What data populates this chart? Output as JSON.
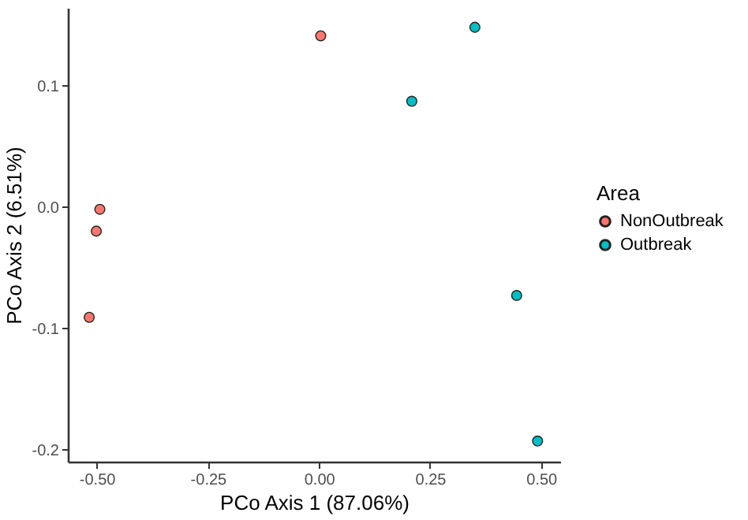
{
  "chart_data": {
    "type": "scatter",
    "xlabel": "PCo Axis 1 (87.06%)",
    "ylabel": "PCo Axis 2 (6.51%)",
    "legend_title": "Area",
    "legend": "right",
    "grid": false,
    "marker": "circle",
    "xlim": [
      -0.565,
      0.543
    ],
    "ylim": [
      -0.21,
      0.164
    ],
    "xticks": [
      {
        "value": -0.5,
        "label": "-0.50"
      },
      {
        "value": -0.25,
        "label": "-0.25"
      },
      {
        "value": 0,
        "label": "0.00"
      },
      {
        "value": 0.25,
        "label": "0.25"
      },
      {
        "value": 0.5,
        "label": "0.50"
      }
    ],
    "yticks": [
      {
        "value": -0.2,
        "label": "-0.2"
      },
      {
        "value": -0.1,
        "label": "-0.1"
      },
      {
        "value": 0,
        "label": "0.0"
      },
      {
        "value": 0.1,
        "label": "0.1"
      }
    ],
    "series": [
      {
        "name": "NonOutbreak",
        "color": "#f8766d",
        "x": [
          0.004,
          -0.493,
          -0.501,
          -0.517
        ],
        "values": [
          0.141,
          -0.002,
          -0.02,
          -0.091
        ]
      },
      {
        "name": "Outbreak",
        "color": "#00bfc4",
        "x": [
          0.351,
          0.209,
          0.445,
          0.492
        ],
        "values": [
          0.148,
          0.087,
          -0.073,
          -0.193
        ]
      }
    ]
  }
}
